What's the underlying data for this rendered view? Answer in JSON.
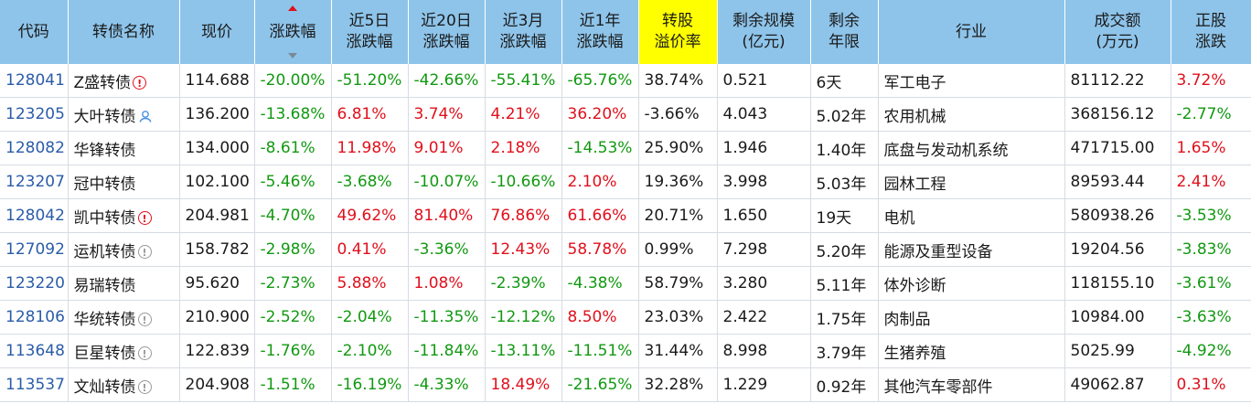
{
  "headers": {
    "code": "代码",
    "name": "转债名称",
    "price": "现价",
    "change": "涨跌幅",
    "d5": [
      "近5日",
      "涨跌幅"
    ],
    "d20": [
      "近20日",
      "涨跌幅"
    ],
    "m3": [
      "近3月",
      "涨跌幅"
    ],
    "y1": [
      "近1年",
      "涨跌幅"
    ],
    "premium": [
      "转股",
      "溢价率"
    ],
    "scale": [
      "剩余规模",
      "(亿元)"
    ],
    "years": [
      "剩余",
      "年限"
    ],
    "industry": "行业",
    "volume": [
      "成交额",
      "(万元)"
    ],
    "stock": [
      "正股",
      "涨跌"
    ]
  },
  "accent": {
    "header_bg": "#8ec4ea",
    "highlight": "#ffff00",
    "up": "#e0101c",
    "down": "#119911",
    "code": "#2a5ca8"
  },
  "rows": [
    {
      "code": "128041",
      "name": "Z盛转债",
      "icon": "warn",
      "price": "114.688",
      "change": "-20.00%",
      "d5": "-51.20%",
      "d20": "-42.66%",
      "m3": "-55.41%",
      "y1": "-65.76%",
      "premium": "38.74%",
      "scale": "0.521",
      "years": "6天",
      "industry": "军工电子",
      "volume": "81112.22",
      "stock": "3.72%"
    },
    {
      "code": "123205",
      "name": "大叶转债",
      "icon": "person",
      "price": "136.200",
      "change": "-13.68%",
      "d5": "6.81%",
      "d20": "3.74%",
      "m3": "4.21%",
      "y1": "36.20%",
      "premium": "-3.66%",
      "scale": "4.043",
      "years": "5.02年",
      "industry": "农用机械",
      "volume": "368156.12",
      "stock": "-2.77%"
    },
    {
      "code": "128082",
      "name": "华锋转债",
      "icon": "",
      "price": "134.000",
      "change": "-8.61%",
      "d5": "11.98%",
      "d20": "9.01%",
      "m3": "2.18%",
      "y1": "-14.53%",
      "premium": "25.90%",
      "scale": "1.946",
      "years": "1.40年",
      "industry": "底盘与发动机系统",
      "volume": "471715.00",
      "stock": "1.65%"
    },
    {
      "code": "123207",
      "name": "冠中转债",
      "icon": "",
      "price": "102.100",
      "change": "-5.46%",
      "d5": "-3.68%",
      "d20": "-10.07%",
      "m3": "-10.66%",
      "y1": "2.10%",
      "premium": "19.36%",
      "scale": "3.998",
      "years": "5.03年",
      "industry": "园林工程",
      "volume": "89593.44",
      "stock": "2.41%"
    },
    {
      "code": "128042",
      "name": "凯中转债",
      "icon": "warn",
      "price": "204.981",
      "change": "-4.70%",
      "d5": "49.62%",
      "d20": "81.40%",
      "m3": "76.86%",
      "y1": "61.66%",
      "premium": "20.71%",
      "scale": "1.650",
      "years": "19天",
      "industry": "电机",
      "volume": "580938.26",
      "stock": "-3.53%"
    },
    {
      "code": "127092",
      "name": "运机转债",
      "icon": "info",
      "price": "158.782",
      "change": "-2.98%",
      "d5": "0.41%",
      "d20": "-3.36%",
      "m3": "12.43%",
      "y1": "58.78%",
      "premium": "0.99%",
      "scale": "7.298",
      "years": "5.20年",
      "industry": "能源及重型设备",
      "volume": "19204.56",
      "stock": "-3.83%"
    },
    {
      "code": "123220",
      "name": "易瑞转债",
      "icon": "",
      "price": "95.620",
      "change": "-2.73%",
      "d5": "5.88%",
      "d20": "1.08%",
      "m3": "-2.39%",
      "y1": "-4.38%",
      "premium": "58.79%",
      "scale": "3.280",
      "years": "5.11年",
      "industry": "体外诊断",
      "volume": "118155.10",
      "stock": "-3.61%"
    },
    {
      "code": "128106",
      "name": "华统转债",
      "icon": "info",
      "price": "210.900",
      "change": "-2.52%",
      "d5": "-2.04%",
      "d20": "-11.35%",
      "m3": "-12.12%",
      "y1": "8.50%",
      "premium": "23.03%",
      "scale": "2.422",
      "years": "1.75年",
      "industry": "肉制品",
      "volume": "10984.00",
      "stock": "-3.63%"
    },
    {
      "code": "113648",
      "name": "巨星转债",
      "icon": "info",
      "price": "122.839",
      "change": "-1.76%",
      "d5": "-2.10%",
      "d20": "-11.84%",
      "m3": "-13.11%",
      "y1": "-11.51%",
      "premium": "31.44%",
      "scale": "8.998",
      "years": "3.79年",
      "industry": "生猪养殖",
      "volume": "5025.99",
      "stock": "-4.92%"
    },
    {
      "code": "113537",
      "name": "文灿转债",
      "icon": "info",
      "price": "204.908",
      "change": "-1.51%",
      "d5": "-16.19%",
      "d20": "-4.33%",
      "m3": "18.49%",
      "y1": "-21.65%",
      "premium": "32.28%",
      "scale": "1.229",
      "years": "0.92年",
      "industry": "其他汽车零部件",
      "volume": "49062.87",
      "stock": "0.31%"
    }
  ]
}
